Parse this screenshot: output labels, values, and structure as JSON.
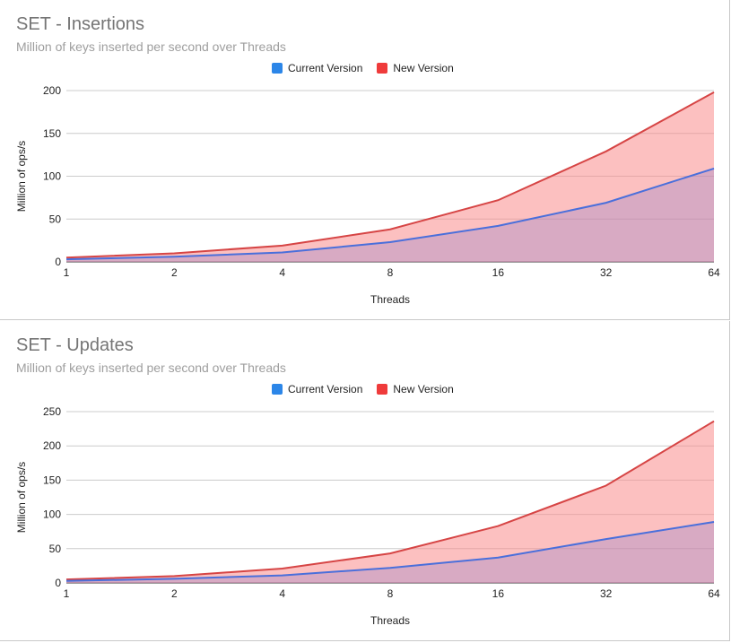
{
  "chart_data": [
    {
      "type": "area",
      "title": "SET - Insertions",
      "subtitle": "Million of keys inserted per second over Threads",
      "xlabel": "Threads",
      "ylabel": "Million of ops/s",
      "categories": [
        "1",
        "2",
        "4",
        "8",
        "16",
        "32",
        "64"
      ],
      "ylim": [
        0,
        200
      ],
      "yticks": [
        0,
        50,
        100,
        150,
        200
      ],
      "grid": true,
      "legend_position": "top",
      "series": [
        {
          "name": "Current Version",
          "color": "#4a6fdb",
          "swatch": "#2c86e8",
          "fill": "rgba(150,130,200,0.35)",
          "values": [
            3,
            6,
            11,
            23,
            42,
            69,
            109
          ]
        },
        {
          "name": "New Version",
          "color": "#d64545",
          "swatch": "#ef3b3b",
          "fill": "rgba(250,140,140,0.55)",
          "values": [
            5,
            10,
            19,
            38,
            72,
            129,
            198
          ]
        }
      ]
    },
    {
      "type": "area",
      "title": "SET - Updates",
      "subtitle": "Million of keys inserted per second over Threads",
      "xlabel": "Threads",
      "ylabel": "Million of ops/s",
      "categories": [
        "1",
        "2",
        "4",
        "8",
        "16",
        "32",
        "64"
      ],
      "ylim": [
        0,
        250
      ],
      "yticks": [
        0,
        50,
        100,
        150,
        200,
        250
      ],
      "grid": true,
      "legend_position": "top",
      "series": [
        {
          "name": "Current Version",
          "color": "#4a6fdb",
          "swatch": "#2c86e8",
          "fill": "rgba(150,130,200,0.35)",
          "values": [
            3,
            6,
            11,
            22,
            37,
            64,
            89
          ]
        },
        {
          "name": "New Version",
          "color": "#d64545",
          "swatch": "#ef3b3b",
          "fill": "rgba(250,140,140,0.55)",
          "values": [
            5,
            10,
            21,
            43,
            83,
            142,
            236
          ]
        }
      ]
    }
  ]
}
